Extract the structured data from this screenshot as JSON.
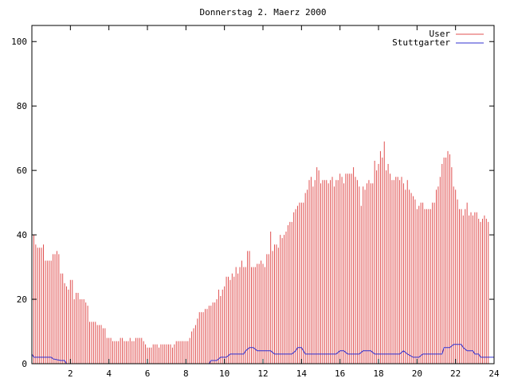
{
  "chart_data": {
    "type": "bar",
    "title": "Donnerstag 2. Maerz 2000",
    "xlabel": "",
    "ylabel": "",
    "xlim": [
      0,
      24
    ],
    "ylim": [
      0,
      105
    ],
    "xticks": [
      "2",
      "4",
      "6",
      "8",
      "10",
      "12",
      "14",
      "16",
      "18",
      "20",
      "22",
      "24"
    ],
    "yticks": [
      "0",
      "20",
      "40",
      "60",
      "80",
      "100"
    ],
    "legend_position": "top-right",
    "series": [
      {
        "name": "User",
        "style": "impulses",
        "color": "#e05050",
        "step": 0.1,
        "values": [
          41,
          40,
          37,
          36,
          36,
          36,
          37,
          32,
          32,
          32,
          32,
          34,
          34,
          35,
          34,
          28,
          28,
          25,
          24,
          23,
          26,
          26,
          20,
          22,
          22,
          20,
          20,
          20,
          19,
          18,
          13,
          13,
          13,
          13,
          12,
          12,
          12,
          11,
          11,
          8,
          8,
          8,
          7,
          7,
          7,
          7,
          8,
          8,
          7,
          7,
          7,
          8,
          7,
          7,
          8,
          8,
          8,
          8,
          7,
          6,
          5,
          5,
          5,
          6,
          6,
          6,
          5,
          6,
          6,
          6,
          6,
          6,
          6,
          5,
          6,
          7,
          7,
          7,
          7,
          7,
          7,
          7,
          8,
          10,
          11,
          12,
          14,
          16,
          16,
          16,
          17,
          17,
          18,
          18,
          19,
          19,
          20,
          23,
          21,
          23,
          24,
          27,
          27,
          26,
          28,
          27,
          30,
          28,
          30,
          32,
          30,
          30,
          35,
          35,
          30,
          30,
          30,
          31,
          31,
          32,
          31,
          30,
          34,
          34,
          41,
          35,
          37,
          37,
          36,
          40,
          39,
          40,
          41,
          43,
          44,
          44,
          47,
          48,
          49,
          50,
          50,
          50,
          53,
          54,
          57,
          58,
          55,
          57,
          61,
          60,
          56,
          57,
          57,
          57,
          56,
          57,
          58,
          55,
          57,
          57,
          59,
          58,
          56,
          59,
          59,
          59,
          59,
          61,
          58,
          57,
          55,
          49,
          55,
          54,
          56,
          57,
          56,
          56,
          63,
          60,
          62,
          66,
          64,
          69,
          60,
          62,
          59,
          57,
          57,
          58,
          58,
          57,
          58,
          56,
          54,
          57,
          54,
          53,
          52,
          51,
          48,
          49,
          50,
          50,
          48,
          48,
          48,
          48,
          50,
          50,
          54,
          55,
          58,
          62,
          64,
          64,
          66,
          65,
          61,
          55,
          54,
          51,
          48,
          48,
          46,
          48,
          50,
          46,
          47,
          46,
          47,
          47,
          45,
          44,
          45,
          46,
          45,
          44
        ]
      },
      {
        "name": "Stuttgarter",
        "style": "line",
        "color": "#3030d0",
        "points": [
          [
            0,
            3
          ],
          [
            0.1,
            2
          ],
          [
            1,
            2
          ],
          [
            1.1,
            1.5
          ],
          [
            1.5,
            1
          ],
          [
            1.7,
            1
          ],
          [
            1.8,
            0
          ],
          [
            9.2,
            0
          ],
          [
            9.3,
            1
          ],
          [
            9.6,
            1
          ],
          [
            9.8,
            2
          ],
          [
            10.1,
            2
          ],
          [
            10.3,
            3
          ],
          [
            11,
            3
          ],
          [
            11.1,
            4
          ],
          [
            11.3,
            5
          ],
          [
            11.5,
            5
          ],
          [
            11.7,
            4
          ],
          [
            12.4,
            4
          ],
          [
            12.6,
            3
          ],
          [
            13.5,
            3
          ],
          [
            13.7,
            4
          ],
          [
            13.8,
            5
          ],
          [
            14,
            5
          ],
          [
            14.1,
            4
          ],
          [
            14.2,
            3
          ],
          [
            15.8,
            3
          ],
          [
            16,
            4
          ],
          [
            16.2,
            4
          ],
          [
            16.4,
            3
          ],
          [
            17,
            3
          ],
          [
            17.2,
            4
          ],
          [
            17.6,
            4
          ],
          [
            17.8,
            3
          ],
          [
            19.1,
            3
          ],
          [
            19.3,
            4
          ],
          [
            19.5,
            3
          ],
          [
            19.8,
            2
          ],
          [
            20.1,
            2
          ],
          [
            20.3,
            3
          ],
          [
            21.3,
            3
          ],
          [
            21.4,
            5
          ],
          [
            21.7,
            5
          ],
          [
            21.9,
            6
          ],
          [
            22.3,
            6
          ],
          [
            22.4,
            5
          ],
          [
            22.6,
            4
          ],
          [
            22.9,
            4
          ],
          [
            23,
            3
          ],
          [
            23.2,
            3
          ],
          [
            23.3,
            2
          ],
          [
            24,
            2
          ]
        ]
      }
    ]
  }
}
